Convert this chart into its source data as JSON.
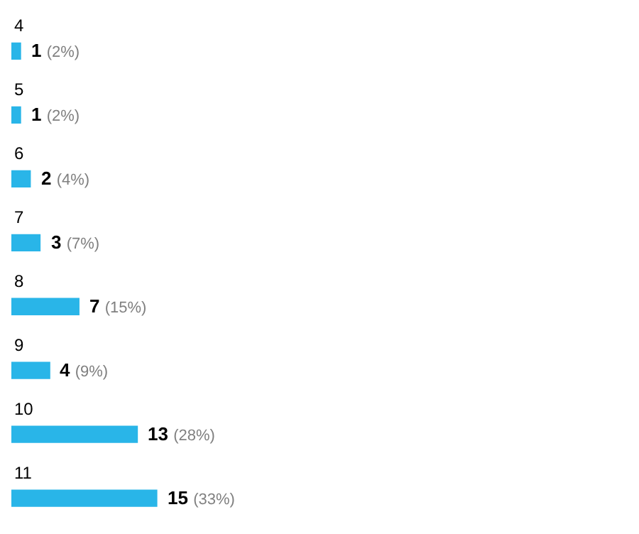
{
  "chart_data": {
    "type": "bar",
    "orientation": "horizontal",
    "categories": [
      "4",
      "5",
      "6",
      "7",
      "8",
      "9",
      "10",
      "11"
    ],
    "values": [
      1,
      1,
      2,
      3,
      7,
      4,
      13,
      15
    ],
    "value_labels": [
      "1 (2%)",
      "1 (2%)",
      "2 (4%)",
      "3 (7%)",
      "7 (15%)",
      "4 (9%)",
      "13 (28%)",
      "15 (33%)"
    ],
    "color": "#29b5e8"
  }
}
